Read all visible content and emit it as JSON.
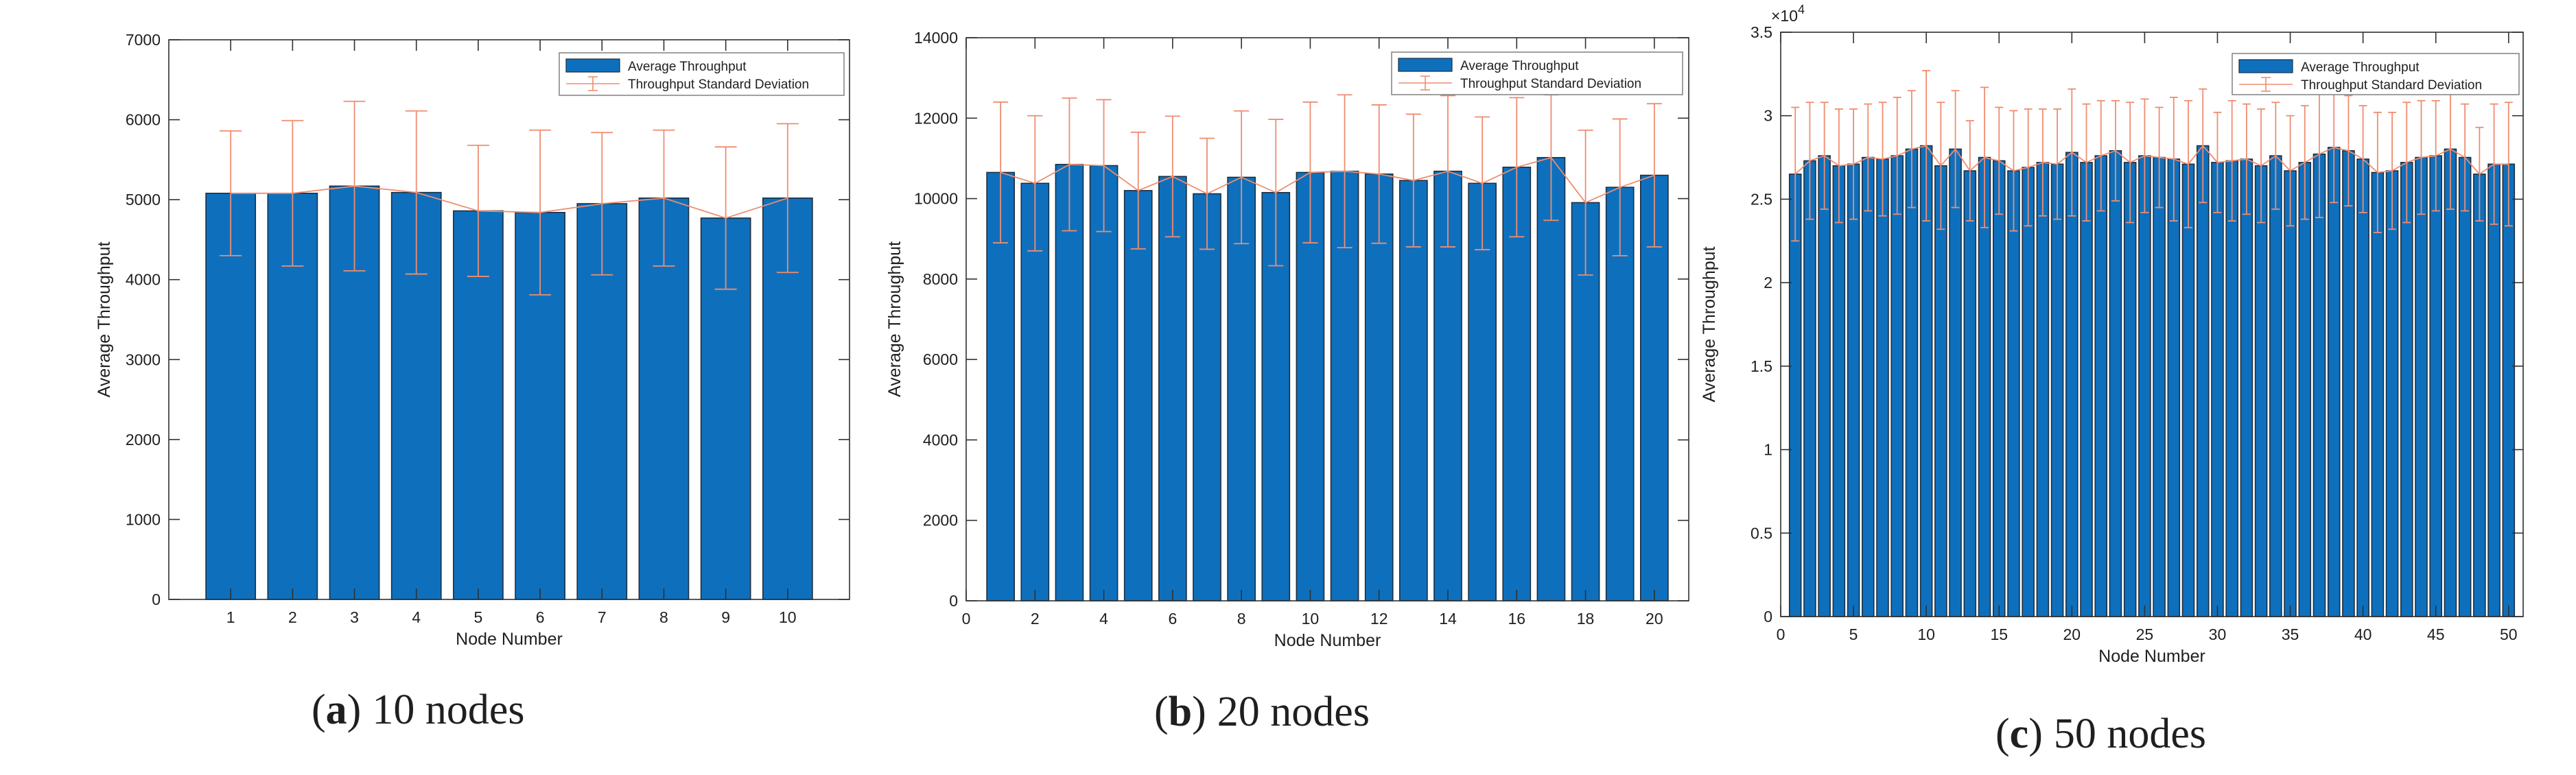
{
  "colors": {
    "bar": "#0e70bd",
    "bar_edge": "#1d2f42",
    "error": "#ef8d70",
    "axis": "#303030",
    "text": "#1f1f1f",
    "legend_border": "#777777"
  },
  "chart_data": [
    {
      "type": "bar",
      "panel": "a",
      "xlabel": "Node Number",
      "ylabel": "Average Throughput",
      "xlim": [
        0.0,
        11.0
      ],
      "ylim": [
        0,
        7000
      ],
      "yticks": [
        0,
        1000,
        2000,
        3000,
        4000,
        5000,
        6000,
        7000
      ],
      "ytick_labels": [
        "0",
        "1000",
        "2000",
        "3000",
        "4000",
        "5000",
        "6000",
        "7000"
      ],
      "xticks": [
        1,
        2,
        3,
        4,
        5,
        6,
        7,
        8,
        9,
        10
      ],
      "xtick_labels": [
        "1",
        "2",
        "3",
        "4",
        "5",
        "6",
        "7",
        "8",
        "9",
        "10"
      ],
      "exponent_label": "",
      "exponent_power": "",
      "bar_width": 0.8,
      "x": [
        1,
        2,
        3,
        4,
        5,
        6,
        7,
        8,
        9,
        10
      ],
      "values": [
        5080,
        5080,
        5170,
        5090,
        4860,
        4840,
        4950,
        5020,
        4770,
        5020
      ],
      "std": [
        780,
        910,
        1060,
        1020,
        820,
        1030,
        890,
        850,
        890,
        930
      ],
      "legend": {
        "position": "top-right",
        "entries": [
          "Average Throughput",
          "Throughput Standard Deviation"
        ]
      },
      "caption": {
        "letter": "a",
        "text": "10 nodes",
        "open": "(",
        "close": ")"
      }
    },
    {
      "type": "bar",
      "panel": "b",
      "xlabel": "Node Number",
      "ylabel": "Average Throughput",
      "xlim": [
        0,
        21
      ],
      "ylim": [
        0,
        14000
      ],
      "yticks": [
        0,
        2000,
        4000,
        6000,
        8000,
        10000,
        12000,
        14000
      ],
      "ytick_labels": [
        "0",
        "2000",
        "4000",
        "6000",
        "8000",
        "10000",
        "12000",
        "14000"
      ],
      "xticks": [
        0,
        2,
        4,
        6,
        8,
        10,
        12,
        14,
        16,
        18,
        20
      ],
      "xtick_labels": [
        "0",
        "2",
        "4",
        "6",
        "8",
        "10",
        "12",
        "14",
        "16",
        "18",
        "20"
      ],
      "exponent_label": "",
      "exponent_power": "",
      "bar_width": 0.8,
      "x": [
        1,
        2,
        3,
        4,
        5,
        6,
        7,
        8,
        9,
        10,
        11,
        12,
        13,
        14,
        15,
        16,
        17,
        18,
        19,
        20
      ],
      "values": [
        10650,
        10380,
        10850,
        10820,
        10200,
        10550,
        10120,
        10530,
        10150,
        10650,
        10680,
        10610,
        10450,
        10680,
        10380,
        10780,
        11020,
        9900,
        10280,
        10580
      ],
      "std": [
        1750,
        1680,
        1650,
        1640,
        1450,
        1500,
        1380,
        1650,
        1820,
        1750,
        1900,
        1720,
        1650,
        1880,
        1650,
        1730,
        1560,
        1800,
        1700,
        1780
      ],
      "legend": {
        "position": "top-right",
        "entries": [
          "Average Throughput",
          "Throughput Standard Deviation"
        ]
      },
      "caption": {
        "letter": "b",
        "text": "20 nodes",
        "open": "(",
        "close": ")"
      }
    },
    {
      "type": "bar",
      "panel": "c",
      "xlabel": "Node Number",
      "ylabel": "Average Throughput",
      "xlim": [
        0,
        51
      ],
      "ylim": [
        0,
        3.5
      ],
      "yticks": [
        0,
        0.5,
        1,
        1.5,
        2,
        2.5,
        3,
        3.5
      ],
      "ytick_labels": [
        "0",
        "0.5",
        "1",
        "1.5",
        "2",
        "2.5",
        "3",
        "3.5"
      ],
      "xticks": [
        0,
        5,
        10,
        15,
        20,
        25,
        30,
        35,
        40,
        45,
        50
      ],
      "xtick_labels": [
        "0",
        "5",
        "10",
        "15",
        "20",
        "25",
        "30",
        "35",
        "40",
        "45",
        "50"
      ],
      "exponent_label": "×10",
      "exponent_power": "4",
      "bar_width": 0.8,
      "x": [
        1,
        2,
        3,
        4,
        5,
        6,
        7,
        8,
        9,
        10,
        11,
        12,
        13,
        14,
        15,
        16,
        17,
        18,
        19,
        20,
        21,
        22,
        23,
        24,
        25,
        26,
        27,
        28,
        29,
        30,
        31,
        32,
        33,
        34,
        35,
        36,
        37,
        38,
        39,
        40,
        41,
        42,
        43,
        44,
        45,
        46,
        47,
        48,
        49,
        50
      ],
      "values": [
        2.65,
        2.73,
        2.76,
        2.7,
        2.71,
        2.75,
        2.74,
        2.76,
        2.8,
        2.82,
        2.7,
        2.8,
        2.67,
        2.75,
        2.73,
        2.67,
        2.69,
        2.72,
        2.71,
        2.78,
        2.72,
        2.76,
        2.79,
        2.72,
        2.76,
        2.75,
        2.74,
        2.71,
        2.82,
        2.72,
        2.73,
        2.74,
        2.7,
        2.76,
        2.67,
        2.72,
        2.77,
        2.81,
        2.79,
        2.74,
        2.66,
        2.67,
        2.72,
        2.75,
        2.76,
        2.8,
        2.75,
        2.65,
        2.71,
        2.71
      ],
      "std": [
        0.4,
        0.35,
        0.32,
        0.34,
        0.33,
        0.32,
        0.34,
        0.35,
        0.35,
        0.45,
        0.38,
        0.35,
        0.3,
        0.42,
        0.32,
        0.36,
        0.35,
        0.32,
        0.33,
        0.38,
        0.35,
        0.33,
        0.3,
        0.36,
        0.34,
        0.3,
        0.37,
        0.38,
        0.34,
        0.3,
        0.36,
        0.33,
        0.34,
        0.32,
        0.33,
        0.34,
        0.38,
        0.33,
        0.33,
        0.32,
        0.36,
        0.35,
        0.36,
        0.34,
        0.33,
        0.36,
        0.32,
        0.28,
        0.36,
        0.37
      ],
      "legend": {
        "position": "top-right",
        "entries": [
          "Average Throughput",
          "Throughput Standard Deviation"
        ]
      },
      "caption": {
        "letter": "c",
        "text": "50 nodes",
        "open": "(",
        "close": ")"
      }
    }
  ]
}
